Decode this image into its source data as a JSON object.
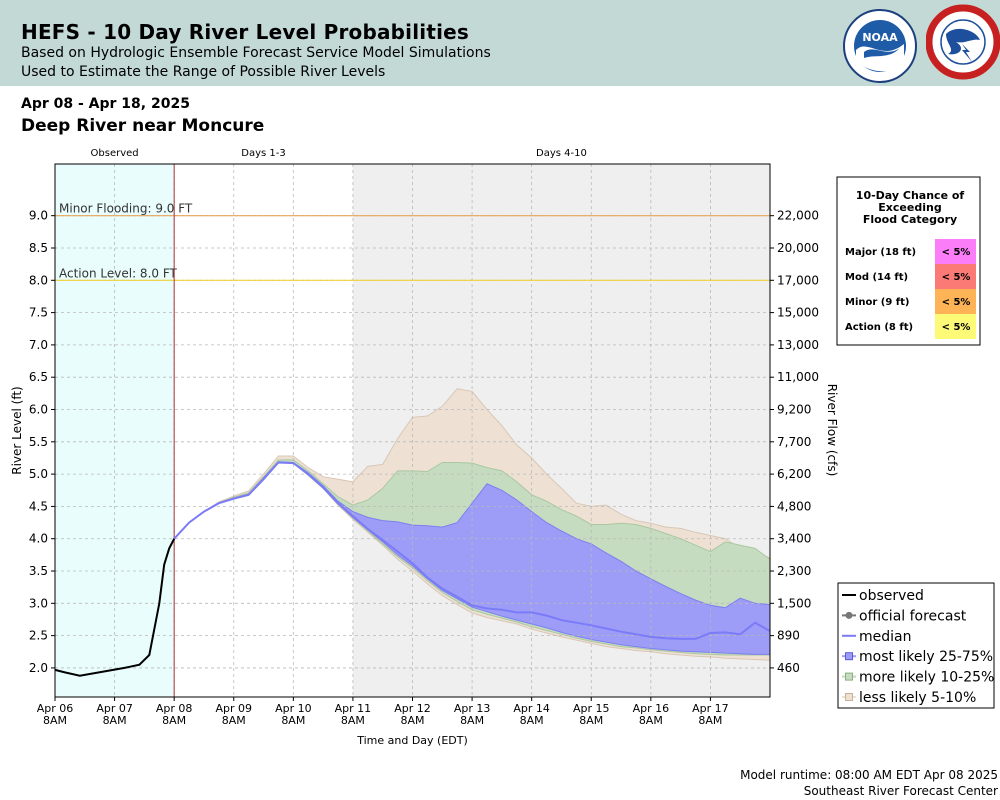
{
  "header": {
    "title": "HEFS - 10 Day River Level Probabilities",
    "subtitle1": "Based on Hydrologic Ensemble Forecast Service Model Simulations",
    "subtitle2": "Used to Estimate the Range of Possible River Levels",
    "noaa_logo_text": "NOAA",
    "nws_logo_text": "NATIONAL WEATHER SERVICE"
  },
  "date_range": "Apr 08 - Apr 18, 2025",
  "location": "Deep River near Moncure",
  "footer": {
    "runtime": "Model runtime: 08:00 AM EDT Apr 08 2025",
    "center": "Southeast River Forecast Center"
  },
  "colors": {
    "observed_bg": "#eafdfd",
    "extended_bg": "#efefef",
    "less_likely": "#eee1d4",
    "more_likely": "#c6dcc0",
    "most_likely": "#9d9df8",
    "median": "#7b7bf8",
    "observed": "#000000",
    "forecast": "#777777",
    "minor_line": "#e8a65a",
    "action_line": "#f0d23c",
    "now_line": "#a83232"
  },
  "chart_data": {
    "type": "line",
    "xlabel": "Time and Day (EDT)",
    "ylabel": "River Level (ft)",
    "y2label": "River Flow (cfs)",
    "ylim": [
      1.55,
      9.8
    ],
    "y_ticks": [
      "2.0",
      "2.5",
      "3.0",
      "3.5",
      "4.0",
      "4.5",
      "5.0",
      "5.5",
      "6.0",
      "6.5",
      "7.0",
      "7.5",
      "8.0",
      "8.5",
      "9.0"
    ],
    "y2_ticks": [
      {
        "stage": 2.0,
        "label": "460"
      },
      {
        "stage": 2.5,
        "label": "890"
      },
      {
        "stage": 3.0,
        "label": "1,500"
      },
      {
        "stage": 3.5,
        "label": "2,300"
      },
      {
        "stage": 4.0,
        "label": "3,400"
      },
      {
        "stage": 4.5,
        "label": "4,800"
      },
      {
        "stage": 5.0,
        "label": "6,200"
      },
      {
        "stage": 5.5,
        "label": "7,700"
      },
      {
        "stage": 6.0,
        "label": "9,200"
      },
      {
        "stage": 6.5,
        "label": "11,000"
      },
      {
        "stage": 7.0,
        "label": "13,000"
      },
      {
        "stage": 7.5,
        "label": "15,000"
      },
      {
        "stage": 8.0,
        "label": "17,000"
      },
      {
        "stage": 8.5,
        "label": "20,000"
      },
      {
        "stage": 9.0,
        "label": "22,000"
      }
    ],
    "x_range": [
      "2025-04-06 08:00",
      "2025-04-18 08:00"
    ],
    "x_ticks": [
      {
        "date": "2025-04-06 08:00",
        "day": "Apr 06",
        "time": "8AM"
      },
      {
        "date": "2025-04-07 08:00",
        "day": "Apr 07",
        "time": "8AM"
      },
      {
        "date": "2025-04-08 08:00",
        "day": "Apr 08",
        "time": "8AM"
      },
      {
        "date": "2025-04-09 08:00",
        "day": "Apr 09",
        "time": "8AM"
      },
      {
        "date": "2025-04-10 08:00",
        "day": "Apr 10",
        "time": "8AM"
      },
      {
        "date": "2025-04-11 08:00",
        "day": "Apr 11",
        "time": "8AM"
      },
      {
        "date": "2025-04-12 08:00",
        "day": "Apr 12",
        "time": "8AM"
      },
      {
        "date": "2025-04-13 08:00",
        "day": "Apr 13",
        "time": "8AM"
      },
      {
        "date": "2025-04-14 08:00",
        "day": "Apr 14",
        "time": "8AM"
      },
      {
        "date": "2025-04-15 08:00",
        "day": "Apr 15",
        "time": "8AM"
      },
      {
        "date": "2025-04-16 08:00",
        "day": "Apr 16",
        "time": "8AM"
      },
      {
        "date": "2025-04-17 08:00",
        "day": "Apr 17",
        "time": "8AM"
      }
    ],
    "periods": [
      {
        "label": "Observed",
        "start": "2025-04-06 08:00",
        "end": "2025-04-08 08:00"
      },
      {
        "label": "Days 1-3",
        "start": "2025-04-08 08:00",
        "end": "2025-04-11 08:00"
      },
      {
        "label": "Days 4-10",
        "start": "2025-04-11 08:00",
        "end": "2025-04-18 08:00"
      }
    ],
    "thresholds": [
      {
        "label": "Minor Flooding: 9.0 FT",
        "value": 9.0
      },
      {
        "label": "Action Level: 8.0 FT",
        "value": 8.0
      }
    ],
    "observed": {
      "x": [
        "2025-04-06 08:00",
        "2025-04-06 12:00",
        "2025-04-06 18:00",
        "2025-04-07 00:00",
        "2025-04-07 06:00",
        "2025-04-07 12:00",
        "2025-04-07 18:00",
        "2025-04-07 22:00",
        "2025-04-08 00:00",
        "2025-04-08 02:00",
        "2025-04-08 04:00",
        "2025-04-08 06:00",
        "2025-04-08 08:00"
      ],
      "y": [
        1.97,
        1.93,
        1.88,
        1.92,
        1.96,
        2.0,
        2.05,
        2.2,
        2.6,
        3.0,
        3.6,
        3.85,
        4.0
      ]
    },
    "median_forecast": {
      "x": [
        "2025-04-08 08:00",
        "2025-04-08 14:00",
        "2025-04-08 20:00",
        "2025-04-09 02:00",
        "2025-04-09 08:00",
        "2025-04-09 14:00",
        "2025-04-09 20:00",
        "2025-04-10 02:00",
        "2025-04-10 08:00",
        "2025-04-10 14:00",
        "2025-04-10 20:00",
        "2025-04-11 02:00",
        "2025-04-11 08:00",
        "2025-04-11 14:00",
        "2025-04-11 20:00",
        "2025-04-12 02:00",
        "2025-04-12 08:00",
        "2025-04-12 14:00",
        "2025-04-12 20:00",
        "2025-04-13 02:00",
        "2025-04-13 08:00",
        "2025-04-13 14:00",
        "2025-04-13 20:00",
        "2025-04-14 02:00",
        "2025-04-14 08:00",
        "2025-04-14 14:00",
        "2025-04-14 20:00",
        "2025-04-15 02:00",
        "2025-04-15 08:00",
        "2025-04-15 14:00",
        "2025-04-15 20:00",
        "2025-04-16 02:00",
        "2025-04-16 08:00",
        "2025-04-16 14:00",
        "2025-04-16 20:00",
        "2025-04-17 02:00",
        "2025-04-17 08:00",
        "2025-04-17 14:00",
        "2025-04-17 20:00",
        "2025-04-18 02:00",
        "2025-04-18 08:00"
      ],
      "y": [
        4.0,
        4.25,
        4.42,
        4.55,
        4.62,
        4.68,
        4.92,
        5.18,
        5.17,
        5.0,
        4.8,
        4.55,
        4.35,
        4.15,
        3.98,
        3.8,
        3.62,
        3.4,
        3.23,
        3.1,
        2.97,
        2.92,
        2.9,
        2.86,
        2.86,
        2.81,
        2.74,
        2.7,
        2.66,
        2.61,
        2.56,
        2.52,
        2.48,
        2.46,
        2.45,
        2.45,
        2.54,
        2.55,
        2.52,
        2.7,
        2.57
      ]
    },
    "bands": [
      {
        "name": "less likely 5-10%",
        "x": [
          "2025-04-08 08:00",
          "2025-04-08 14:00",
          "2025-04-08 20:00",
          "2025-04-09 02:00",
          "2025-04-09 08:00",
          "2025-04-09 14:00",
          "2025-04-09 20:00",
          "2025-04-10 02:00",
          "2025-04-10 08:00",
          "2025-04-10 14:00",
          "2025-04-10 20:00",
          "2025-04-11 02:00",
          "2025-04-11 08:00",
          "2025-04-11 14:00",
          "2025-04-11 20:00",
          "2025-04-12 02:00",
          "2025-04-12 08:00",
          "2025-04-12 14:00",
          "2025-04-12 20:00",
          "2025-04-13 02:00",
          "2025-04-13 08:00",
          "2025-04-13 14:00",
          "2025-04-13 20:00",
          "2025-04-14 02:00",
          "2025-04-14 08:00",
          "2025-04-14 14:00",
          "2025-04-14 20:00",
          "2025-04-15 02:00",
          "2025-04-15 08:00",
          "2025-04-15 14:00",
          "2025-04-15 20:00",
          "2025-04-16 02:00",
          "2025-04-16 08:00",
          "2025-04-16 14:00",
          "2025-04-16 20:00",
          "2025-04-17 02:00",
          "2025-04-17 08:00",
          "2025-04-17 14:00",
          "2025-04-17 20:00",
          "2025-04-18 02:00",
          "2025-04-18 08:00"
        ],
        "high": [
          4.0,
          4.25,
          4.42,
          4.57,
          4.66,
          4.74,
          5.0,
          5.28,
          5.28,
          5.1,
          4.96,
          4.92,
          4.88,
          5.12,
          5.15,
          5.55,
          5.88,
          5.9,
          6.05,
          6.32,
          6.28,
          6.0,
          5.75,
          5.45,
          5.25,
          5.0,
          4.78,
          4.55,
          4.5,
          4.52,
          4.38,
          4.28,
          4.24,
          4.18,
          4.16,
          4.1,
          4.05,
          4.0,
          3.85,
          3.8,
          3.7
        ],
        "low": [
          4.0,
          4.25,
          4.42,
          4.55,
          4.62,
          4.68,
          4.92,
          5.18,
          5.17,
          4.98,
          4.78,
          4.52,
          4.3,
          4.1,
          3.9,
          3.68,
          3.5,
          3.3,
          3.12,
          2.98,
          2.85,
          2.78,
          2.73,
          2.68,
          2.6,
          2.54,
          2.48,
          2.43,
          2.38,
          2.33,
          2.3,
          2.27,
          2.25,
          2.22,
          2.2,
          2.18,
          2.17,
          2.15,
          2.14,
          2.13,
          2.12
        ]
      },
      {
        "name": "more likely 10-25%",
        "x": [
          "2025-04-08 08:00",
          "2025-04-08 14:00",
          "2025-04-08 20:00",
          "2025-04-09 02:00",
          "2025-04-09 08:00",
          "2025-04-09 14:00",
          "2025-04-09 20:00",
          "2025-04-10 02:00",
          "2025-04-10 08:00",
          "2025-04-10 14:00",
          "2025-04-10 20:00",
          "2025-04-11 02:00",
          "2025-04-11 08:00",
          "2025-04-11 14:00",
          "2025-04-11 20:00",
          "2025-04-12 02:00",
          "2025-04-12 08:00",
          "2025-04-12 14:00",
          "2025-04-12 20:00",
          "2025-04-13 02:00",
          "2025-04-13 08:00",
          "2025-04-13 14:00",
          "2025-04-13 20:00",
          "2025-04-14 02:00",
          "2025-04-14 08:00",
          "2025-04-14 14:00",
          "2025-04-14 20:00",
          "2025-04-15 02:00",
          "2025-04-15 08:00",
          "2025-04-15 14:00",
          "2025-04-15 20:00",
          "2025-04-16 02:00",
          "2025-04-16 08:00",
          "2025-04-16 14:00",
          "2025-04-16 20:00",
          "2025-04-17 02:00",
          "2025-04-17 08:00",
          "2025-04-17 14:00",
          "2025-04-17 20:00",
          "2025-04-18 02:00",
          "2025-04-18 08:00"
        ],
        "high": [
          4.0,
          4.25,
          4.42,
          4.56,
          4.64,
          4.71,
          4.96,
          5.22,
          5.22,
          5.05,
          4.85,
          4.65,
          4.52,
          4.6,
          4.78,
          5.05,
          5.05,
          5.04,
          5.18,
          5.18,
          5.17,
          5.1,
          5.05,
          4.88,
          4.68,
          4.58,
          4.45,
          4.35,
          4.22,
          4.22,
          4.24,
          4.22,
          4.16,
          4.08,
          4.0,
          3.9,
          3.8,
          3.95,
          3.9,
          3.85,
          3.68
        ],
        "low": [
          4.0,
          4.25,
          4.42,
          4.55,
          4.62,
          4.68,
          4.92,
          5.18,
          5.17,
          4.98,
          4.78,
          4.53,
          4.32,
          4.12,
          3.92,
          3.72,
          3.55,
          3.35,
          3.17,
          3.03,
          2.9,
          2.83,
          2.77,
          2.71,
          2.64,
          2.58,
          2.52,
          2.46,
          2.41,
          2.37,
          2.33,
          2.31,
          2.28,
          2.26,
          2.24,
          2.22,
          2.21,
          2.2,
          2.2,
          2.2,
          2.2
        ]
      },
      {
        "name": "most likely 25-75%",
        "x": [
          "2025-04-08 08:00",
          "2025-04-08 14:00",
          "2025-04-08 20:00",
          "2025-04-09 02:00",
          "2025-04-09 08:00",
          "2025-04-09 14:00",
          "2025-04-09 20:00",
          "2025-04-10 02:00",
          "2025-04-10 08:00",
          "2025-04-10 14:00",
          "2025-04-10 20:00",
          "2025-04-11 02:00",
          "2025-04-11 08:00",
          "2025-04-11 14:00",
          "2025-04-11 20:00",
          "2025-04-12 02:00",
          "2025-04-12 08:00",
          "2025-04-12 14:00",
          "2025-04-12 20:00",
          "2025-04-13 02:00",
          "2025-04-13 08:00",
          "2025-04-13 14:00",
          "2025-04-13 20:00",
          "2025-04-14 02:00",
          "2025-04-14 08:00",
          "2025-04-14 14:00",
          "2025-04-14 20:00",
          "2025-04-15 02:00",
          "2025-04-15 08:00",
          "2025-04-15 14:00",
          "2025-04-15 20:00",
          "2025-04-16 02:00",
          "2025-04-16 08:00",
          "2025-04-16 14:00",
          "2025-04-16 20:00",
          "2025-04-17 02:00",
          "2025-04-17 08:00",
          "2025-04-17 14:00",
          "2025-04-17 20:00",
          "2025-04-18 02:00",
          "2025-04-18 08:00"
        ],
        "high": [
          4.0,
          4.25,
          4.42,
          4.55,
          4.63,
          4.69,
          4.94,
          5.19,
          5.18,
          5.02,
          4.82,
          4.58,
          4.42,
          4.33,
          4.28,
          4.26,
          4.21,
          4.2,
          4.18,
          4.25,
          4.55,
          4.85,
          4.75,
          4.6,
          4.42,
          4.25,
          4.12,
          4.0,
          3.92,
          3.78,
          3.65,
          3.5,
          3.38,
          3.26,
          3.15,
          3.05,
          2.97,
          2.93,
          3.08,
          3.0,
          2.98
        ],
        "low": [
          4.0,
          4.25,
          4.42,
          4.55,
          4.62,
          4.68,
          4.92,
          5.18,
          5.17,
          4.99,
          4.78,
          4.54,
          4.33,
          4.14,
          3.95,
          3.75,
          3.58,
          3.38,
          3.2,
          3.07,
          2.94,
          2.87,
          2.8,
          2.74,
          2.68,
          2.62,
          2.55,
          2.49,
          2.44,
          2.4,
          2.36,
          2.33,
          2.3,
          2.28,
          2.26,
          2.25,
          2.24,
          2.23,
          2.22,
          2.21,
          2.21
        ]
      }
    ],
    "legend": [
      {
        "key": "observed",
        "label": "observed"
      },
      {
        "key": "forecast",
        "label": "official forecast"
      },
      {
        "key": "median",
        "label": "median"
      },
      {
        "key": "most",
        "label": "most likely 25-75%"
      },
      {
        "key": "more",
        "label": "more likely 10-25%"
      },
      {
        "key": "less",
        "label": "less likely 5-10%"
      }
    ],
    "legend_position": "bottom-right outside plot",
    "flood_category_table": {
      "title": [
        "10-Day Chance of",
        "Exceeding",
        "Flood Category"
      ],
      "rows": [
        {
          "category": "Major (18 ft)",
          "chance": "< 5%",
          "color": "#fb7df8"
        },
        {
          "category": "Mod (14 ft)",
          "chance": "< 5%",
          "color": "#fc7a76"
        },
        {
          "category": "Minor (9 ft)",
          "chance": "< 5%",
          "color": "#fdb356"
        },
        {
          "category": "Action (8 ft)",
          "chance": "< 5%",
          "color": "#fdfa78"
        }
      ]
    },
    "grid": true
  }
}
